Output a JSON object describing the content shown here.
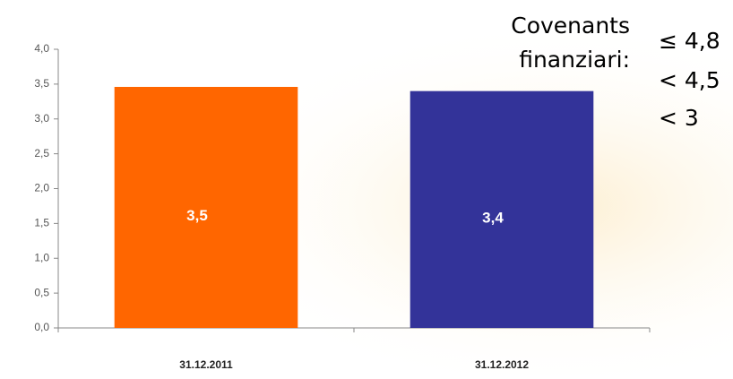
{
  "chart_data": {
    "type": "bar",
    "categories": [
      "31.12.2011",
      "31.12.2012"
    ],
    "values": [
      3.46,
      3.4
    ],
    "value_labels": [
      "3,5",
      "3,4"
    ],
    "colors": [
      "#ff6600",
      "#333399"
    ],
    "ylim": [
      0,
      4
    ],
    "yticks": [
      {
        "value": 0,
        "label": "0,0"
      },
      {
        "value": 0.5,
        "label": "0,5"
      },
      {
        "value": 1,
        "label": "1,0"
      },
      {
        "value": 1.5,
        "label": "1,5"
      },
      {
        "value": 2,
        "label": "2,0"
      },
      {
        "value": 2.5,
        "label": "2,5"
      },
      {
        "value": 3,
        "label": "3,0"
      },
      {
        "value": 3.5,
        "label": "3,5"
      },
      {
        "value": 4,
        "label": "4,0"
      }
    ],
    "grid": false,
    "annotations": [
      "Covenants",
      "finanziari:",
      "≤ 4,8",
      "< 4,5",
      "< 3"
    ]
  }
}
